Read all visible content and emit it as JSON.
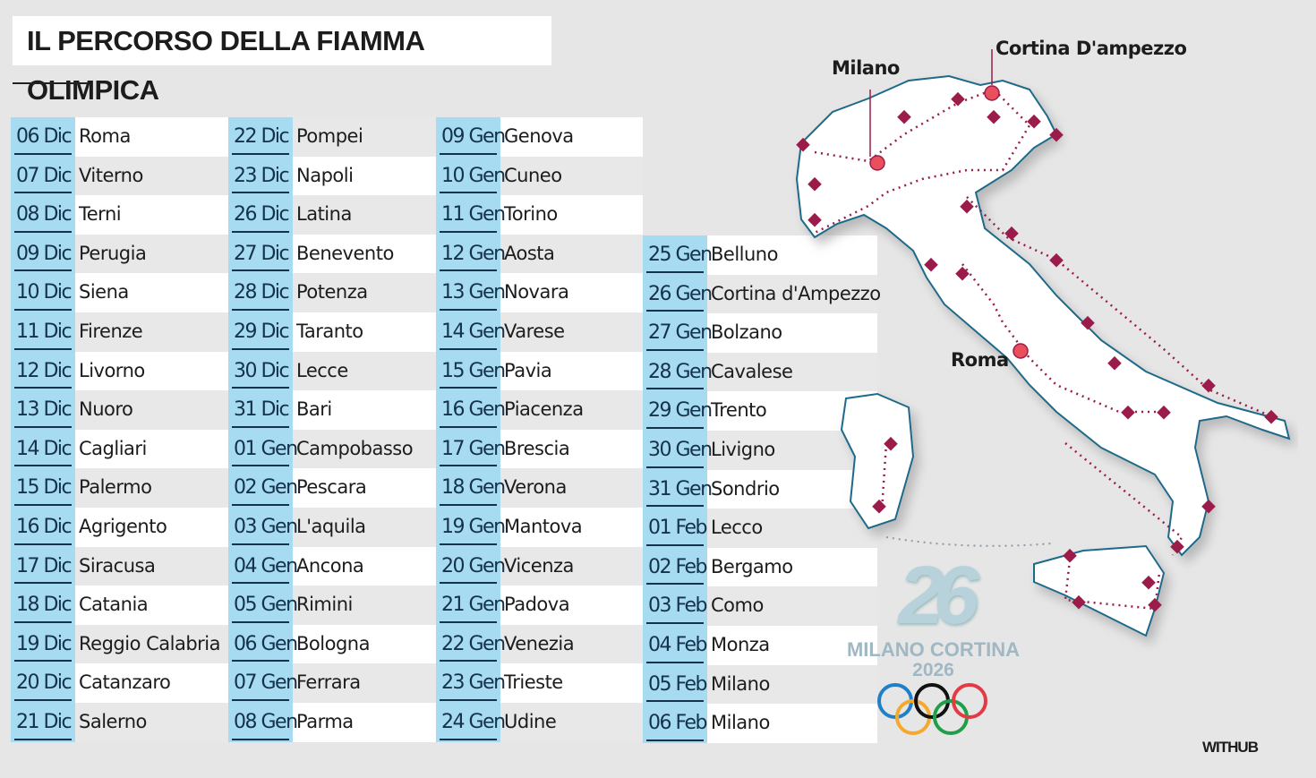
{
  "title": "IL PERCORSO DELLA FIAMMA OLIMPICA",
  "columns": [
    [
      {
        "date": "06 Dic",
        "city": "Roma"
      },
      {
        "date": "07 Dic",
        "city": "Viterno"
      },
      {
        "date": "08 Dic",
        "city": "Terni"
      },
      {
        "date": "09 Dic",
        "city": "Perugia"
      },
      {
        "date": "10 Dic",
        "city": "Siena"
      },
      {
        "date": "11 Dic",
        "city": "Firenze"
      },
      {
        "date": "12 Dic",
        "city": "Livorno"
      },
      {
        "date": "13 Dic",
        "city": "Nuoro"
      },
      {
        "date": "14 Dic",
        "city": "Cagliari"
      },
      {
        "date": "15 Dic",
        "city": "Palermo"
      },
      {
        "date": "16 Dic",
        "city": "Agrigento"
      },
      {
        "date": "17 Dic",
        "city": "Siracusa"
      },
      {
        "date": "18 Dic",
        "city": "Catania"
      },
      {
        "date": "19 Dic",
        "city": "Reggio Calabria"
      },
      {
        "date": "20 Dic",
        "city": "Catanzaro"
      },
      {
        "date": "21 Dic",
        "city": "Salerno"
      }
    ],
    [
      {
        "date": "22 Dic",
        "city": "Pompei"
      },
      {
        "date": "23 Dic",
        "city": "Napoli"
      },
      {
        "date": "26 Dic",
        "city": "Latina"
      },
      {
        "date": "27 Dic",
        "city": "Benevento"
      },
      {
        "date": "28 Dic",
        "city": "Potenza"
      },
      {
        "date": "29 Dic",
        "city": "Taranto"
      },
      {
        "date": "30 Dic",
        "city": "Lecce"
      },
      {
        "date": "31 Dic",
        "city": "Bari"
      },
      {
        "date": "01 Gen",
        "city": "Campobasso"
      },
      {
        "date": "02 Gen",
        "city": "Pescara"
      },
      {
        "date": "03 Gen",
        "city": "L'aquila"
      },
      {
        "date": "04 Gen",
        "city": "Ancona"
      },
      {
        "date": "05 Gen",
        "city": "Rimini"
      },
      {
        "date": "06 Gen",
        "city": "Bologna"
      },
      {
        "date": "07 Gen",
        "city": "Ferrara"
      },
      {
        "date": "08 Gen",
        "city": "Parma"
      }
    ],
    [
      {
        "date": "09 Gen",
        "city": "Genova"
      },
      {
        "date": "10 Gen",
        "city": "Cuneo"
      },
      {
        "date": "11 Gen",
        "city": "Torino"
      },
      {
        "date": "12 Gen",
        "city": "Aosta"
      },
      {
        "date": "13 Gen",
        "city": "Novara"
      },
      {
        "date": "14 Gen",
        "city": "Varese"
      },
      {
        "date": "15 Gen",
        "city": "Pavia"
      },
      {
        "date": "16 Gen",
        "city": "Piacenza"
      },
      {
        "date": "17 Gen",
        "city": "Brescia"
      },
      {
        "date": "18 Gen",
        "city": "Verona"
      },
      {
        "date": "19 Gen",
        "city": "Mantova"
      },
      {
        "date": "20 Gen",
        "city": "Vicenza"
      },
      {
        "date": "21 Gen",
        "city": "Padova"
      },
      {
        "date": "22 Gen",
        "city": "Venezia"
      },
      {
        "date": "23 Gen",
        "city": "Trieste"
      },
      {
        "date": "24 Gen",
        "city": "Udine"
      }
    ],
    [
      {
        "date": "25 Gen",
        "city": "Belluno"
      },
      {
        "date": "26 Gen",
        "city": "Cortina d'Ampezzo"
      },
      {
        "date": "27 Gen",
        "city": "Bolzano"
      },
      {
        "date": "28 Gen",
        "city": "Cavalese"
      },
      {
        "date": "29 Gen",
        "city": "Trento"
      },
      {
        "date": "30 Gen",
        "city": "Livigno"
      },
      {
        "date": "31 Gen",
        "city": "Sondrio"
      },
      {
        "date": "01 Feb",
        "city": "Lecco"
      },
      {
        "date": "02 Feb",
        "city": "Bergamo"
      },
      {
        "date": "03 Feb",
        "city": "Como"
      },
      {
        "date": "04 Feb",
        "city": "Monza"
      },
      {
        "date": "05 Feb",
        "city": "Milano"
      },
      {
        "date": "06 Feb",
        "city": "Milano"
      }
    ]
  ],
  "map": {
    "labels": {
      "milano": "Milano",
      "cortina": "Cortina D'ampezzo",
      "roma": "Roma"
    },
    "route_color": "#9b1b4a",
    "pin_color": "#e8505b",
    "coast_color": "#1f6b8a"
  },
  "logo": {
    "mark": "26",
    "name": "MILANO CORTINA",
    "year": "2026",
    "ring_colors": [
      "#1f80c8",
      "#f4a92e",
      "#111111",
      "#1fa048",
      "#e33b45"
    ]
  },
  "credit": "WITHUB",
  "colors": {
    "date_bg": "#a6dbf2",
    "background": "#e6e6e6"
  }
}
